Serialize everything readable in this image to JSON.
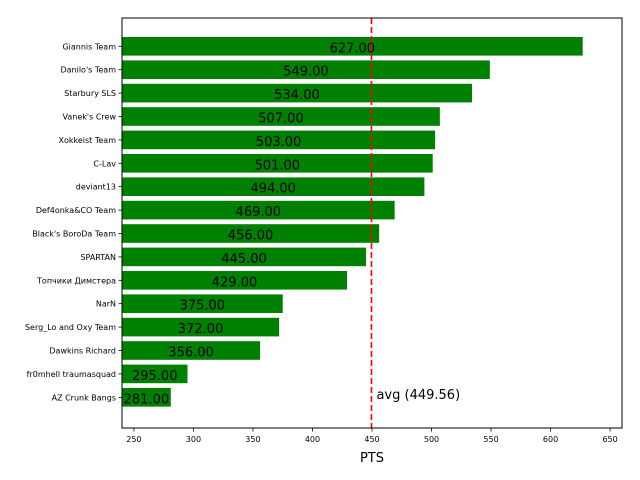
{
  "chart_data": {
    "type": "bar",
    "orientation": "horizontal",
    "categories": [
      "Giannis Team",
      "Danilo's Team",
      "Starbury SLS",
      "Vanek's Crew",
      "Xokkeist Team",
      "C-Lav",
      "deviant13",
      "Def4onka&CO Team",
      "Black's BoroDa Team",
      "SPARTAN",
      "Топчики Димстера",
      "NarN",
      "Serg_Lo and Oxy Team",
      "Dawkins Richard",
      "fr0mhell traumasquad",
      "AZ Crunk Bangs"
    ],
    "values": [
      627,
      549,
      534,
      507,
      503,
      501,
      494,
      469,
      456,
      445,
      429,
      375,
      372,
      356,
      295,
      281
    ],
    "value_labels": [
      "627.00",
      "549.00",
      "534.00",
      "507.00",
      "503.00",
      "501.00",
      "494.00",
      "469.00",
      "456.00",
      "445.00",
      "429.00",
      "375.00",
      "372.00",
      "356.00",
      "295.00",
      "281.00"
    ],
    "xlabel": "PTS",
    "xlim": [
      240,
      660
    ],
    "xticks": [
      250,
      300,
      350,
      400,
      450,
      500,
      550,
      600,
      650
    ],
    "bar_color": "#008000",
    "average": {
      "value": 449.56,
      "label": "avg (449.56)",
      "color": "#ff0000",
      "style": "dashed"
    },
    "grid": false
  }
}
